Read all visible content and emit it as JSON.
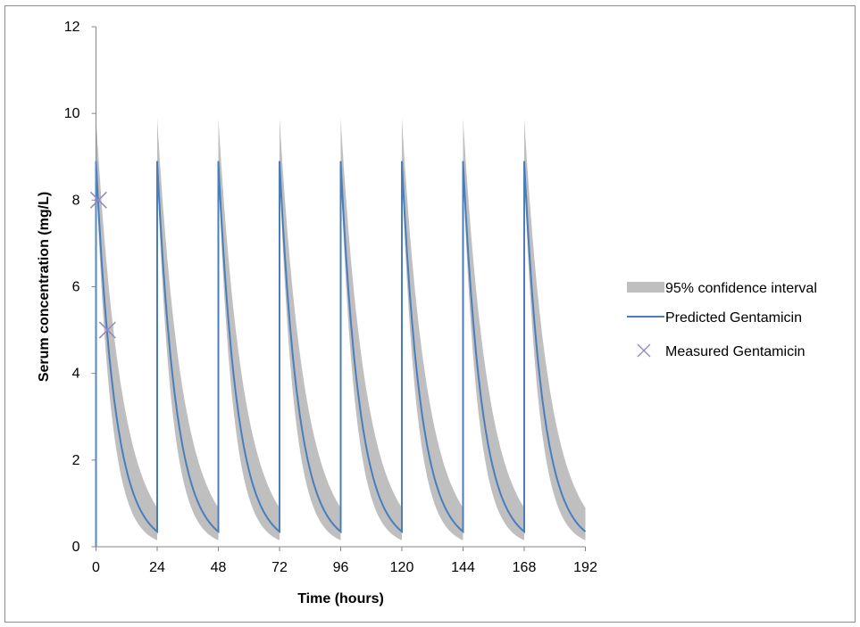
{
  "chart_data": {
    "type": "line",
    "title": "",
    "xlabel": "Time (hours)",
    "ylabel": "Serum concentration (mg/L)",
    "xlim": [
      0,
      192
    ],
    "ylim": [
      0,
      12
    ],
    "xticks": [
      0,
      24,
      48,
      72,
      96,
      120,
      144,
      168,
      192
    ],
    "yticks": [
      0,
      2,
      4,
      6,
      8,
      10,
      12
    ],
    "grid": false,
    "legend_position": "right",
    "dosing_interval_hours": 24,
    "series": [
      {
        "name": "95% confidence interval",
        "kind": "band",
        "color": "#bfbfbf",
        "profile_peak_upper": 9.9,
        "profile_peak_lower": 8.6,
        "profile_trough_upper": 0.9,
        "profile_trough_lower": 0.15
      },
      {
        "name": "Predicted Gentamicin",
        "kind": "line",
        "color": "#4a7ebb",
        "profile_peak": 8.9,
        "profile_trough": 0.35
      },
      {
        "name": "Measured Gentamicin",
        "kind": "scatter",
        "color": "#9585c4",
        "x": [
          1,
          4.5
        ],
        "y": [
          8.0,
          5.0
        ]
      }
    ]
  }
}
